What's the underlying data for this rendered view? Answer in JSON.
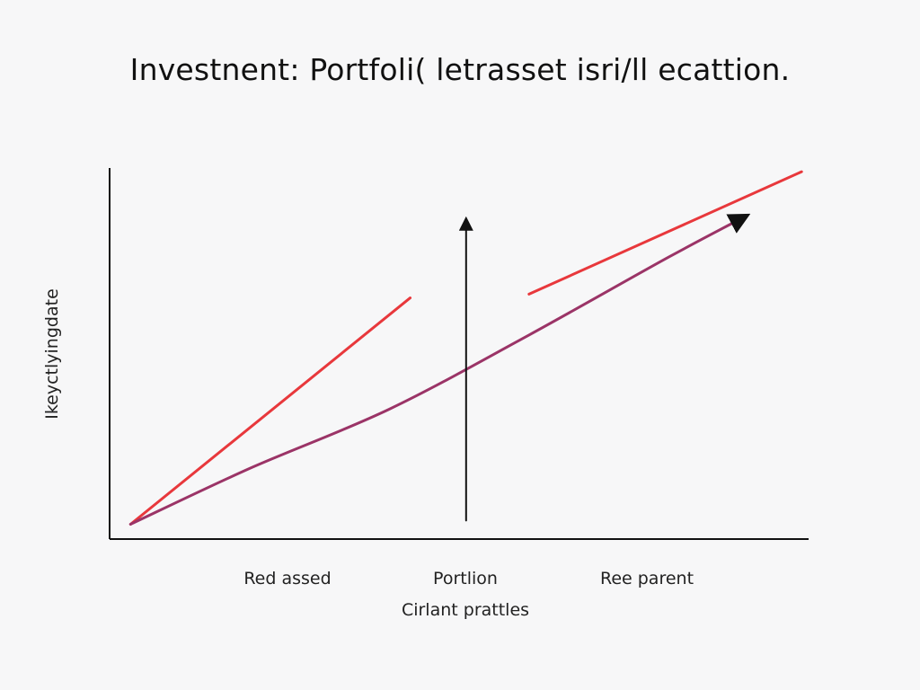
{
  "chart_data": {
    "type": "line",
    "title": "Investnent: Portfoli( letrasset isri/ll ecattion.",
    "xlabel": "Cirlant prattles",
    "ylabel": "Ikeyctlyingdate",
    "categories": [
      "Red assed",
      "Portlion",
      "Ree parent"
    ],
    "xlim": [
      0,
      100
    ],
    "ylim": [
      0,
      100
    ],
    "grid": false,
    "legend": "none",
    "series": [
      {
        "color": "#e8383c",
        "segments": [
          [
            [
              3,
              4
            ],
            [
              43,
              65
            ]
          ],
          [
            [
              60,
              66
            ],
            [
              99,
              99
            ]
          ]
        ]
      },
      {
        "color": "#9b3467",
        "arrow_end": true,
        "points": [
          [
            3,
            4
          ],
          [
            20,
            19
          ],
          [
            40,
            35
          ],
          [
            60,
            55
          ],
          [
            80,
            76
          ],
          [
            91,
            87
          ]
        ]
      },
      {
        "color": "#111111",
        "arrow_end": true,
        "points": [
          [
            51,
            5
          ],
          [
            51,
            86
          ]
        ]
      }
    ]
  }
}
